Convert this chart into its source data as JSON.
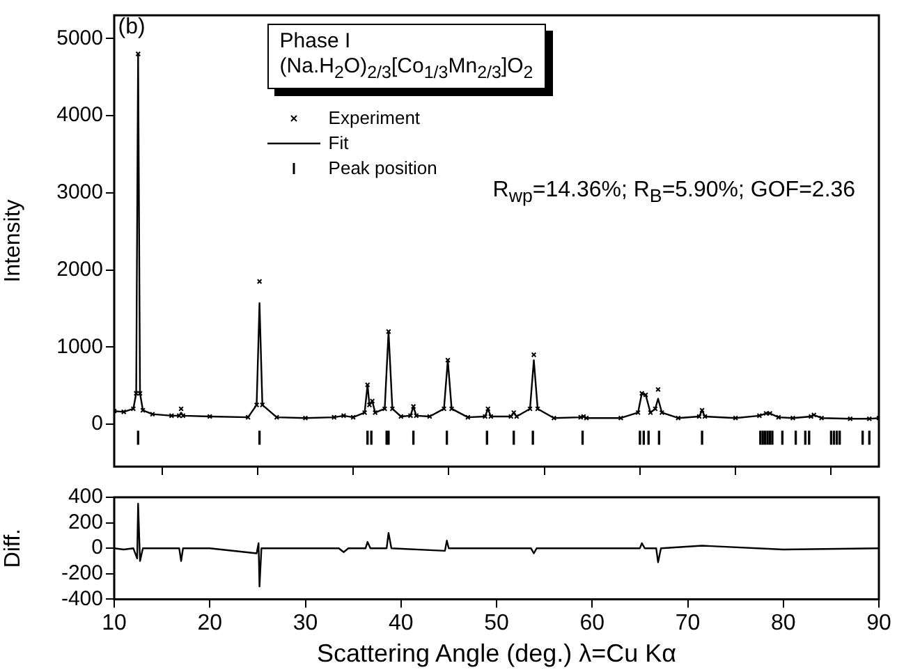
{
  "chart_data": [
    {
      "type": "line",
      "ylabel": "Intensity",
      "grid": false,
      "legend": "top",
      "tick_labels": "y",
      "annotations": [
        "(b)",
        "Phase I",
        "(Na.H$_{2}$O)$_{2/3}$[Co$_{1/3}$Mn$_{2/3}$]O$_{2}$",
        "R$_{wp}$=14.36%; R$_{B}$=5.90%; GOF=2.36"
      ],
      "xlim": [
        10,
        90
      ],
      "xticks": [
        10,
        20,
        30,
        40,
        50,
        60,
        70,
        80,
        90
      ],
      "ylim": [
        -550,
        5300
      ],
      "yticks": [
        0,
        1000,
        2000,
        3000,
        4000,
        5000
      ],
      "x": [
        10,
        11,
        12,
        12.3,
        12.5,
        12.7,
        13,
        14,
        16,
        16.8,
        17,
        17.2,
        20,
        24,
        24.9,
        25.2,
        25.5,
        27,
        30,
        33,
        34,
        35,
        36.2,
        36.5,
        36.7,
        37,
        37.3,
        38.3,
        38.7,
        39.1,
        40,
        41,
        41.3,
        41.6,
        43,
        44.5,
        44.9,
        45.3,
        47,
        48.8,
        49.1,
        49.4,
        51.5,
        51.8,
        52.1,
        53.5,
        53.9,
        54.3,
        56,
        58.8,
        59.1,
        59.4,
        63,
        64.8,
        65.2,
        65.6,
        66.1,
        66.6,
        66.9,
        67.3,
        69,
        71.2,
        71.5,
        71.8,
        75,
        77.5,
        78.2,
        78.6,
        79.5,
        81,
        82.9,
        83.2,
        84,
        87,
        89,
        90
      ],
      "series": [
        {
          "name": "Experiment",
          "type": "scatter",
          "marker": "cross",
          "color": "#000000",
          "values": [
            170,
            160,
            200,
            400,
            4800,
            400,
            180,
            130,
            110,
            110,
            200,
            110,
            100,
            90,
            250,
            1850,
            250,
            90,
            80,
            90,
            110,
            90,
            150,
            510,
            250,
            300,
            150,
            200,
            1200,
            200,
            100,
            110,
            230,
            110,
            100,
            200,
            830,
            200,
            90,
            100,
            200,
            100,
            100,
            150,
            100,
            200,
            900,
            200,
            80,
            90,
            100,
            80,
            80,
            150,
            400,
            380,
            150,
            200,
            450,
            150,
            80,
            100,
            180,
            100,
            80,
            110,
            140,
            140,
            90,
            80,
            100,
            120,
            80,
            70,
            70,
            80
          ]
        },
        {
          "name": "Fit",
          "type": "line",
          "marker": "none",
          "color": "#000000",
          "values": [
            170,
            160,
            200,
            400,
            4800,
            400,
            180,
            130,
            110,
            110,
            150,
            110,
            100,
            90,
            250,
            1570,
            250,
            90,
            80,
            90,
            110,
            90,
            150,
            510,
            250,
            300,
            150,
            200,
            1200,
            200,
            100,
            110,
            230,
            110,
            100,
            200,
            830,
            200,
            90,
            100,
            200,
            100,
            100,
            150,
            100,
            200,
            830,
            200,
            80,
            90,
            100,
            80,
            80,
            150,
            400,
            380,
            150,
            200,
            330,
            150,
            80,
            100,
            180,
            100,
            80,
            110,
            140,
            140,
            90,
            80,
            100,
            120,
            80,
            70,
            70,
            80
          ]
        },
        {
          "name": "Peak position",
          "type": "bar",
          "color": "#000000",
          "base": [
            -260,
            -260,
            -260,
            -260,
            -260,
            -260,
            -260,
            -260,
            -260,
            -260,
            -260,
            -260,
            -260,
            -260,
            -260,
            -260,
            -260,
            -260,
            -260,
            -260,
            -260,
            -260,
            -260,
            -260,
            -260,
            -260,
            -260,
            -260,
            -260,
            -260,
            -260,
            -260,
            -260
          ],
          "x": [
            12.5,
            25.2,
            36.5,
            36.9,
            38.5,
            38.7,
            41.3,
            44.8,
            49.0,
            51.8,
            53.8,
            59.0,
            65.0,
            65.4,
            65.9,
            67.0,
            71.5,
            77.6,
            77.85,
            78.1,
            78.35,
            78.6,
            78.85,
            79.9,
            81.3,
            82.3,
            82.7,
            85.0,
            85.3,
            85.6,
            85.9,
            88.3,
            89.0
          ],
          "values": [
            170,
            170,
            170,
            170,
            170,
            170,
            170,
            170,
            170,
            170,
            170,
            170,
            170,
            170,
            170,
            170,
            170,
            170,
            170,
            170,
            170,
            170,
            170,
            170,
            170,
            170,
            170,
            170,
            170,
            170,
            170,
            170,
            170
          ]
        }
      ]
    },
    {
      "type": "line",
      "xlabel": "Scattering Angle (deg.) λ=Cu Kα",
      "ylabel": "Diff.",
      "grid": false,
      "xlim": [
        10,
        90
      ],
      "xticks": [
        10,
        20,
        30,
        40,
        50,
        60,
        70,
        80,
        90
      ],
      "ylim": [
        -400,
        400
      ],
      "yticks": [
        -400,
        -200,
        0,
        200,
        400
      ],
      "x": [
        10,
        11,
        12,
        12.4,
        12.5,
        12.7,
        13,
        16.8,
        17,
        17.2,
        20,
        24.9,
        25.1,
        25.2,
        25.4,
        30,
        33.5,
        34,
        34.5,
        36.3,
        36.5,
        36.8,
        38.5,
        38.7,
        39,
        44.6,
        44.8,
        45,
        53.6,
        53.9,
        54.2,
        60,
        65,
        65.2,
        65.5,
        66.7,
        66.9,
        67.2,
        71.5,
        80,
        90
      ],
      "color": "#000000",
      "values": [
        0,
        -10,
        0,
        -80,
        350,
        -100,
        0,
        0,
        -100,
        0,
        0,
        -40,
        40,
        -300,
        0,
        0,
        0,
        -30,
        0,
        0,
        50,
        0,
        0,
        120,
        0,
        -20,
        60,
        0,
        0,
        -40,
        0,
        0,
        0,
        40,
        0,
        0,
        -110,
        0,
        20,
        -10,
        0
      ]
    }
  ]
}
